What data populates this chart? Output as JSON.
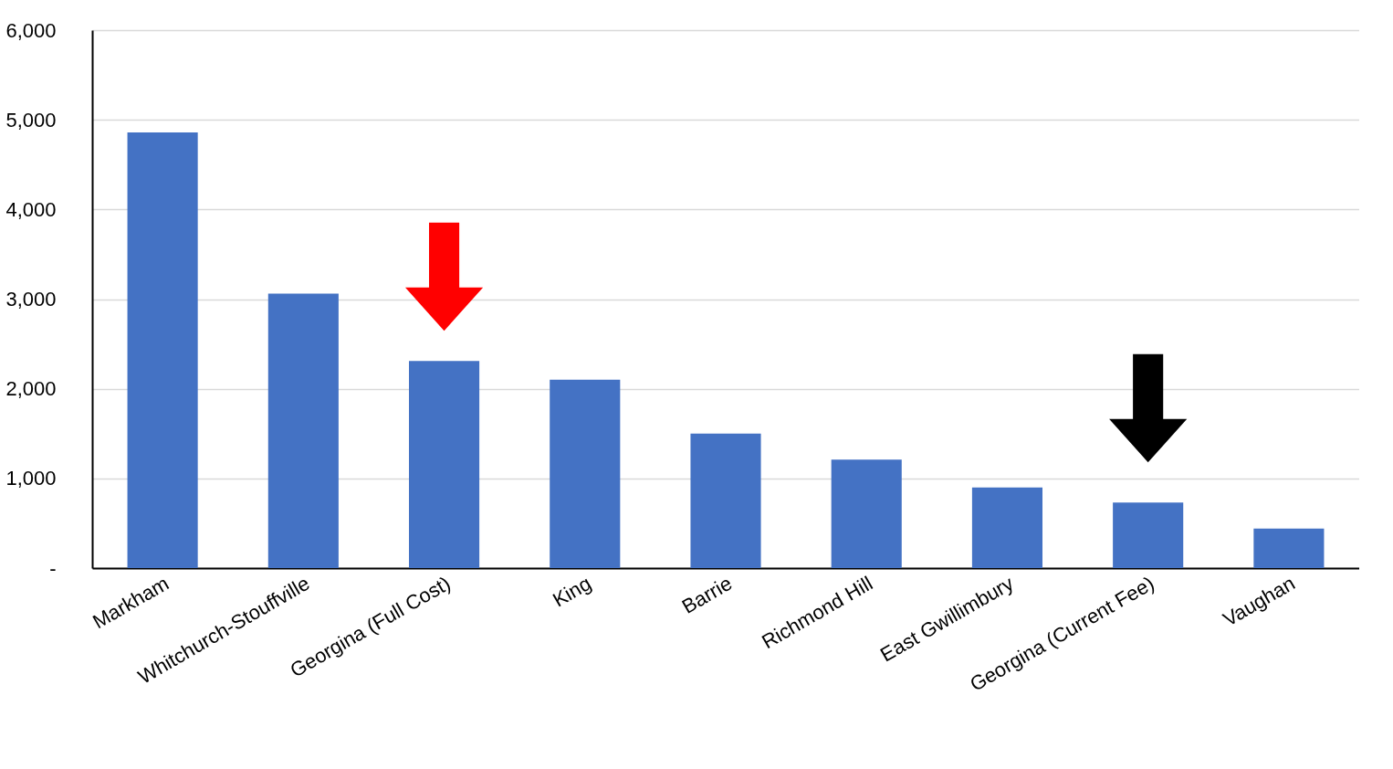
{
  "chart_data": {
    "type": "bar",
    "categories": [
      "Markham",
      "Whitchurch-Stouffville",
      "Georgina (Full Cost)",
      "King",
      "Barrie",
      "Richmond Hill",
      "East Gwillimbury",
      "Georgina (Current Fee)",
      "Vaughan"
    ],
    "values": [
      4860,
      3060,
      2310,
      2100,
      1500,
      1210,
      900,
      730,
      440
    ],
    "color": "#4472c4",
    "ylim": [
      0,
      6000
    ],
    "yticks": [
      {
        "value": 0,
        "label": "-"
      },
      {
        "value": 1000,
        "label": "1,000"
      },
      {
        "value": 2000,
        "label": "2,000"
      },
      {
        "value": 3000,
        "label": "3,000"
      },
      {
        "value": 4000,
        "label": "4,000"
      },
      {
        "value": 5000,
        "label": "5,000"
      },
      {
        "value": 6000,
        "label": "6,000"
      }
    ],
    "grid": "y"
  }
}
